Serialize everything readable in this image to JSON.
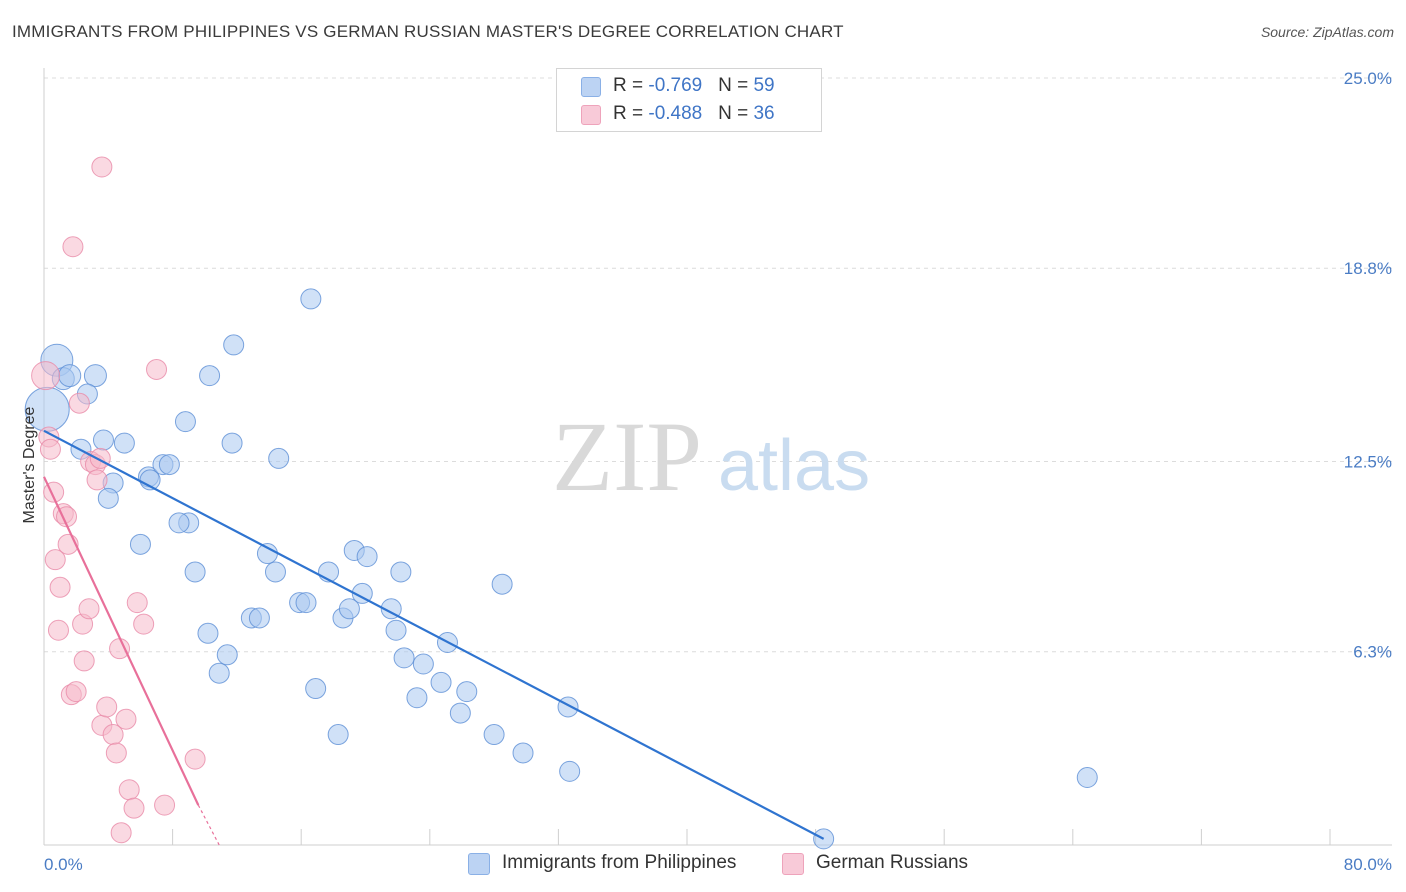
{
  "header": {
    "title": "IMMIGRANTS FROM PHILIPPINES VS GERMAN RUSSIAN MASTER'S DEGREE CORRELATION CHART",
    "source": "Source: ZipAtlas.com"
  },
  "watermark": {
    "zip": "ZIP",
    "atlas": "atlas"
  },
  "legend": {
    "rows": [
      {
        "r_label": "R = ",
        "r_value": "-0.769",
        "n_label": "N = ",
        "n_value": "59",
        "color": "#a9c8f0"
      },
      {
        "r_label": "R = ",
        "r_value": "-0.488",
        "n_label": "N = ",
        "n_value": "36",
        "color": "#f5b9cb"
      }
    ]
  },
  "chart_data": {
    "type": "scatter",
    "title": "IMMIGRANTS FROM PHILIPPINES VS GERMAN RUSSIAN MASTER'S DEGREE CORRELATION CHART",
    "xlabel": "",
    "ylabel": "Master's Degree",
    "xlim": [
      0,
      80
    ],
    "ylim": [
      0,
      25.0
    ],
    "x_tick_labels": [
      "0.0%",
      "80.0%"
    ],
    "y_ticks": [
      6.3,
      12.5,
      18.8,
      25.0
    ],
    "y_tick_labels": [
      "6.3%",
      "12.5%",
      "18.8%",
      "25.0%"
    ],
    "grid": true,
    "legend_position": "top-center",
    "series": [
      {
        "name": "Immigrants from Philippines",
        "color": "#a9c8f0",
        "stroke": "#5d8fd6",
        "trend": {
          "x": [
            0,
            48.5
          ],
          "y": [
            13.5,
            0.2
          ],
          "color": "#2f74d0"
        },
        "points": [
          [
            0.2,
            14.2
          ],
          [
            0.8,
            15.8
          ],
          [
            1.2,
            15.2
          ],
          [
            1.6,
            15.3
          ],
          [
            3.2,
            15.3
          ],
          [
            2.7,
            14.7
          ],
          [
            2.3,
            12.9
          ],
          [
            3.7,
            13.2
          ],
          [
            5.0,
            13.1
          ],
          [
            4.3,
            11.8
          ],
          [
            4.0,
            11.3
          ],
          [
            6.5,
            12.0
          ],
          [
            6.6,
            11.9
          ],
          [
            7.4,
            12.4
          ],
          [
            7.8,
            12.4
          ],
          [
            8.8,
            13.8
          ],
          [
            10.3,
            15.3
          ],
          [
            11.8,
            16.3
          ],
          [
            11.7,
            13.1
          ],
          [
            14.6,
            12.6
          ],
          [
            16.6,
            17.8
          ],
          [
            9.0,
            10.5
          ],
          [
            6.0,
            9.8
          ],
          [
            8.4,
            10.5
          ],
          [
            9.4,
            8.9
          ],
          [
            10.2,
            6.9
          ],
          [
            10.9,
            5.6
          ],
          [
            11.4,
            6.2
          ],
          [
            12.9,
            7.4
          ],
          [
            13.4,
            7.4
          ],
          [
            13.9,
            9.5
          ],
          [
            14.4,
            8.9
          ],
          [
            15.9,
            7.9
          ],
          [
            16.3,
            7.9
          ],
          [
            16.9,
            5.1
          ],
          [
            17.7,
            8.9
          ],
          [
            18.3,
            3.6
          ],
          [
            18.6,
            7.4
          ],
          [
            19.0,
            7.7
          ],
          [
            19.3,
            9.6
          ],
          [
            19.8,
            8.2
          ],
          [
            20.1,
            9.4
          ],
          [
            21.6,
            7.7
          ],
          [
            21.9,
            7.0
          ],
          [
            22.2,
            8.9
          ],
          [
            22.4,
            6.1
          ],
          [
            23.2,
            4.8
          ],
          [
            23.6,
            5.9
          ],
          [
            24.7,
            5.3
          ],
          [
            25.1,
            6.6
          ],
          [
            25.9,
            4.3
          ],
          [
            26.3,
            5.0
          ],
          [
            28.0,
            3.6
          ],
          [
            28.5,
            8.5
          ],
          [
            29.8,
            3.0
          ],
          [
            32.6,
            4.5
          ],
          [
            32.7,
            2.4
          ],
          [
            48.5,
            0.2
          ],
          [
            64.9,
            2.2
          ]
        ],
        "sizes": [
          22,
          16,
          11,
          11,
          11,
          10,
          10,
          10,
          10,
          10,
          10,
          10,
          10,
          10,
          10,
          10,
          10,
          10,
          10,
          10,
          10,
          10,
          10,
          10,
          10,
          10,
          10,
          10,
          10,
          10,
          10,
          10,
          10,
          10,
          10,
          10,
          10,
          10,
          10,
          10,
          10,
          10,
          10,
          10,
          10,
          10,
          10,
          10,
          10,
          10,
          10,
          10,
          10,
          10,
          10,
          10,
          10,
          10,
          10
        ]
      },
      {
        "name": "German Russians",
        "color": "#f5b9cb",
        "stroke": "#e88aa8",
        "trend": {
          "x": [
            0,
            9.6
          ],
          "y": [
            12.0,
            1.3
          ],
          "dash_to": [
            10.9,
            0.0
          ],
          "color": "#e8709a"
        },
        "points": [
          [
            0.1,
            15.3
          ],
          [
            0.3,
            13.3
          ],
          [
            0.4,
            12.9
          ],
          [
            0.6,
            11.5
          ],
          [
            0.7,
            9.3
          ],
          [
            0.9,
            7.0
          ],
          [
            1.0,
            8.4
          ],
          [
            1.2,
            10.8
          ],
          [
            1.4,
            10.7
          ],
          [
            1.5,
            9.8
          ],
          [
            1.7,
            4.9
          ],
          [
            2.0,
            5.0
          ],
          [
            2.2,
            14.4
          ],
          [
            2.4,
            7.2
          ],
          [
            2.5,
            6.0
          ],
          [
            2.8,
            7.7
          ],
          [
            2.9,
            12.5
          ],
          [
            3.2,
            12.4
          ],
          [
            3.3,
            11.9
          ],
          [
            3.5,
            12.6
          ],
          [
            3.6,
            22.1
          ],
          [
            1.8,
            19.5
          ],
          [
            3.6,
            3.9
          ],
          [
            3.9,
            4.5
          ],
          [
            4.3,
            3.6
          ],
          [
            4.5,
            3.0
          ],
          [
            4.7,
            6.4
          ],
          [
            4.8,
            0.4
          ],
          [
            5.1,
            4.1
          ],
          [
            5.3,
            1.8
          ],
          [
            5.6,
            1.2
          ],
          [
            5.8,
            7.9
          ],
          [
            6.2,
            7.2
          ],
          [
            7.0,
            15.5
          ],
          [
            7.5,
            1.3
          ],
          [
            9.4,
            2.8
          ]
        ],
        "sizes": [
          14,
          10,
          10,
          10,
          10,
          10,
          10,
          10,
          10,
          10,
          10,
          10,
          10,
          10,
          10,
          10,
          10,
          10,
          10,
          10,
          10,
          10,
          10,
          10,
          10,
          10,
          10,
          10,
          10,
          10,
          10,
          10,
          10,
          10,
          10,
          10
        ]
      }
    ]
  }
}
